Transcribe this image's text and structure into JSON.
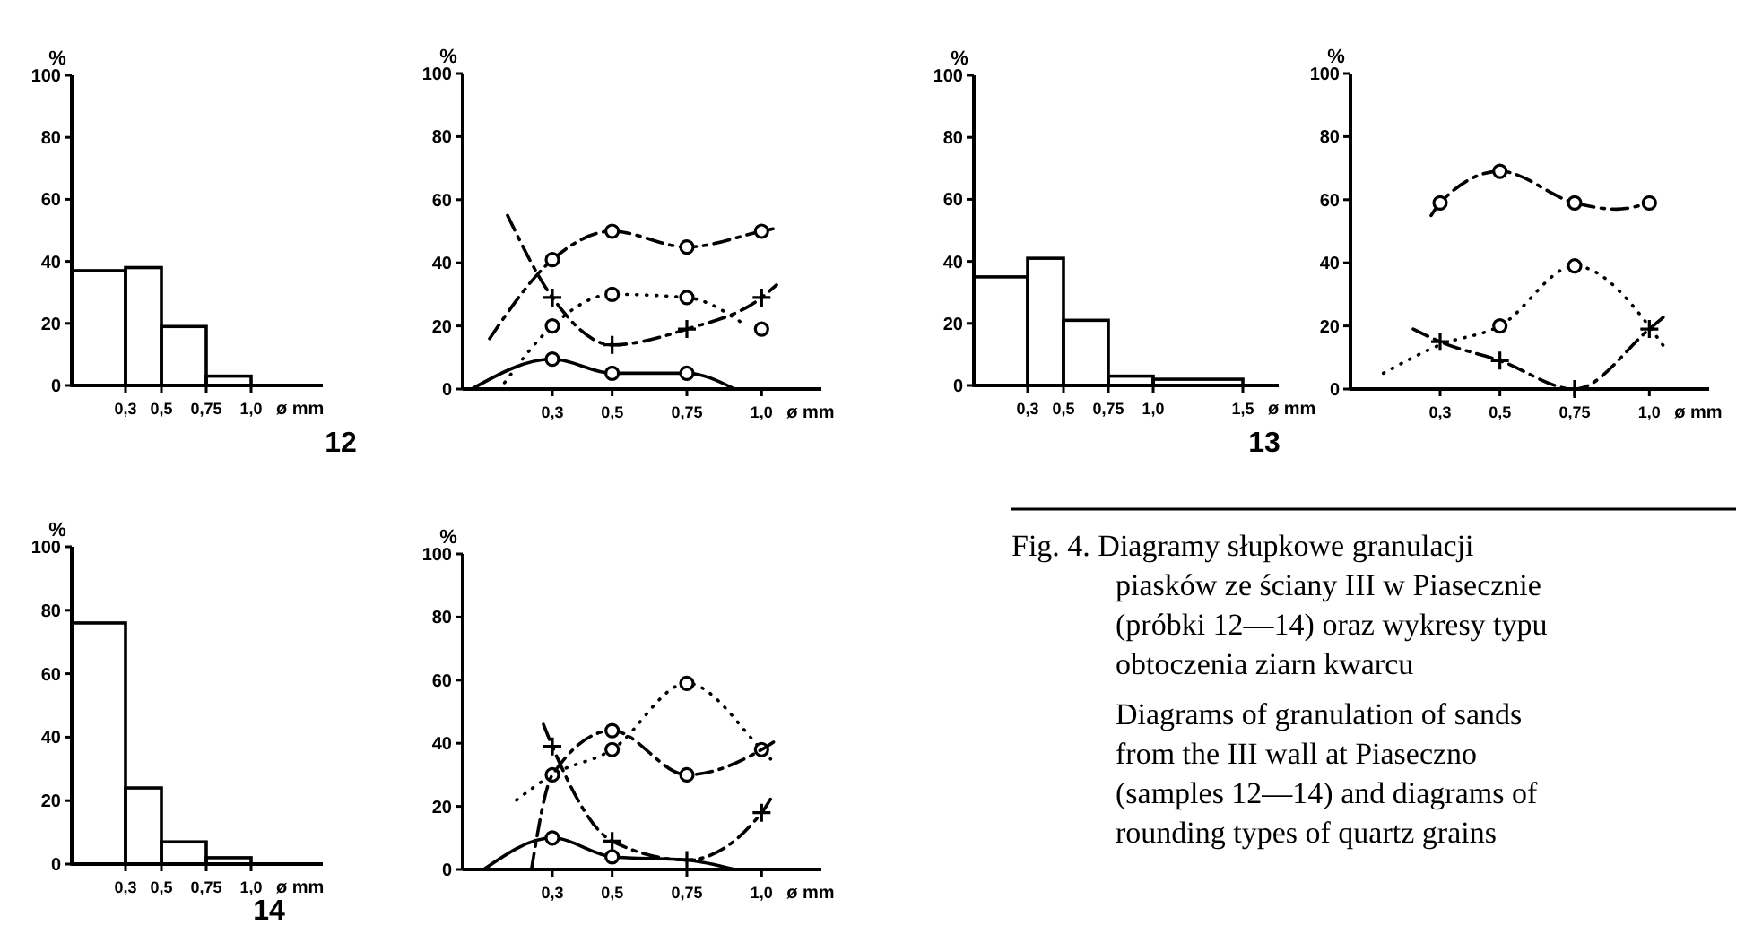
{
  "chart_data": [
    {
      "type": "histogram",
      "ylabel": "%",
      "xlabel": "ø mm",
      "annotations": [
        "12"
      ],
      "bins": [
        0,
        0.3,
        0.5,
        0.75,
        1.0
      ],
      "values": [
        37,
        38,
        19,
        3
      ],
      "color": "#000000",
      "xlim": [
        0,
        1.4
      ],
      "ylim": [
        0,
        100
      ],
      "yticks": [
        0,
        20,
        40,
        60,
        80,
        100
      ],
      "xticks": [
        {
          "value": 0.3,
          "label": "0,3"
        },
        {
          "value": 0.5,
          "label": "0,5"
        },
        {
          "value": 0.75,
          "label": "0,75"
        },
        {
          "value": 1.0,
          "label": "1,0"
        }
      ]
    },
    {
      "type": "line",
      "ylabel": "%",
      "xlabel": "ø mm",
      "xlim": [
        0,
        1.2
      ],
      "ylim": [
        0,
        100
      ],
      "yticks": [
        0,
        20,
        40,
        60,
        80,
        100
      ],
      "xticks": [
        {
          "value": 0.3,
          "label": "0,3"
        },
        {
          "value": 0.5,
          "label": "0,5"
        },
        {
          "value": 0.75,
          "label": "0,75"
        },
        {
          "value": 1.0,
          "label": "1,0"
        }
      ],
      "series": [
        {
          "type": "line",
          "color": "#000000",
          "line_style": "dashed",
          "marker": "none",
          "x": [
            0.09,
            0.3,
            0.5,
            0.75,
            1.0,
            1.05
          ],
          "values": [
            16,
            41,
            50,
            45,
            50,
            51
          ]
        },
        {
          "type": "scatter",
          "color": "#000000",
          "marker": "circle",
          "x": [
            0.3,
            0.5,
            0.75,
            1.0
          ],
          "values": [
            41,
            50,
            45,
            50
          ]
        },
        {
          "type": "line",
          "color": "#000000",
          "line_style": "dotted",
          "marker": "none",
          "x": [
            0.14,
            0.3,
            0.5,
            0.75,
            0.95
          ],
          "values": [
            2,
            20,
            30,
            29,
            20
          ]
        },
        {
          "type": "scatter",
          "color": "#000000",
          "marker": "circle",
          "x": [
            0.3,
            0.5,
            0.75,
            1.0
          ],
          "values": [
            20,
            30,
            29,
            19
          ]
        },
        {
          "type": "line",
          "color": "#000000",
          "line_style": "dashed",
          "marker": "none",
          "x": [
            0.15,
            0.3,
            0.5,
            0.75,
            1.0,
            1.05
          ],
          "values": [
            55,
            29,
            14,
            19,
            29,
            33
          ]
        },
        {
          "type": "scatter",
          "color": "#000000",
          "marker": "cross",
          "x": [
            0.3,
            0.5,
            0.75,
            1.0
          ],
          "values": [
            29,
            14,
            19,
            29
          ]
        },
        {
          "type": "line",
          "color": "#000000",
          "line_style": "solid",
          "marker": "none",
          "x": [
            0.03,
            0.3,
            0.5,
            0.75,
            0.91
          ],
          "values": [
            0,
            9.5,
            5,
            5,
            0
          ]
        },
        {
          "type": "scatter",
          "color": "#000000",
          "marker": "circle",
          "x": [
            0.3,
            0.5,
            0.75
          ],
          "values": [
            9.5,
            5,
            5
          ]
        }
      ]
    },
    {
      "type": "histogram",
      "ylabel": "%",
      "xlabel": "ø mm",
      "annotations": [
        "13"
      ],
      "bins": [
        0,
        0.3,
        0.5,
        0.75,
        1.0,
        1.5
      ],
      "values": [
        35,
        41,
        21,
        3,
        2
      ],
      "color": "#000000",
      "xlim": [
        0,
        1.7
      ],
      "ylim": [
        0,
        100
      ],
      "yticks": [
        0,
        20,
        40,
        60,
        80,
        100
      ],
      "xticks": [
        {
          "value": 0.3,
          "label": "0,3"
        },
        {
          "value": 0.5,
          "label": "0,5"
        },
        {
          "value": 0.75,
          "label": "0,75"
        },
        {
          "value": 1.0,
          "label": "1,0"
        },
        {
          "value": 1.5,
          "label": "1,5"
        }
      ]
    },
    {
      "type": "line",
      "ylabel": "%",
      "xlabel": "ø mm",
      "xlim": [
        0,
        1.2
      ],
      "ylim": [
        0,
        100
      ],
      "yticks": [
        0,
        20,
        40,
        60,
        80,
        100
      ],
      "xticks": [
        {
          "value": 0.3,
          "label": "0,3"
        },
        {
          "value": 0.5,
          "label": "0,5"
        },
        {
          "value": 0.75,
          "label": "0,75"
        },
        {
          "value": 1.0,
          "label": "1,0"
        }
      ],
      "series": [
        {
          "type": "line",
          "color": "#000000",
          "line_style": "dashed",
          "marker": "none",
          "x": [
            0.27,
            0.3,
            0.5,
            0.75,
            0.89,
            1.0
          ],
          "values": [
            55,
            59,
            69,
            59,
            57,
            59
          ]
        },
        {
          "type": "scatter",
          "color": "#000000",
          "marker": "circle",
          "x": [
            0.3,
            0.5,
            0.75,
            1.0
          ],
          "values": [
            59,
            69,
            59,
            59
          ]
        },
        {
          "type": "line",
          "color": "#000000",
          "line_style": "dotted",
          "marker": "none",
          "x": [
            0.11,
            0.3,
            0.5,
            0.75,
            1.06
          ],
          "values": [
            5,
            14,
            20,
            39,
            12
          ]
        },
        {
          "type": "scatter",
          "color": "#000000",
          "marker": "circle",
          "x": [
            0.5,
            0.75
          ],
          "values": [
            20,
            39
          ]
        },
        {
          "type": "line",
          "color": "#000000",
          "line_style": "dashed",
          "marker": "none",
          "x": [
            0.21,
            0.3,
            0.5,
            0.75,
            1.0,
            1.05
          ],
          "values": [
            19,
            15,
            9,
            0,
            19,
            23
          ]
        },
        {
          "type": "scatter",
          "color": "#000000",
          "marker": "cross",
          "x": [
            0.3,
            0.5,
            0.75,
            1.0
          ],
          "values": [
            15,
            9,
            0,
            19
          ]
        }
      ]
    },
    {
      "type": "histogram",
      "ylabel": "%",
      "xlabel": "ø mm",
      "annotations": [
        "14"
      ],
      "bins": [
        0,
        0.3,
        0.5,
        0.75,
        1.0
      ],
      "values": [
        76,
        24,
        7,
        2
      ],
      "color": "#000000",
      "xlim": [
        0,
        1.4
      ],
      "ylim": [
        0,
        100
      ],
      "yticks": [
        0,
        20,
        40,
        60,
        80,
        100
      ],
      "xticks": [
        {
          "value": 0.3,
          "label": "0,3"
        },
        {
          "value": 0.5,
          "label": "0,5"
        },
        {
          "value": 0.75,
          "label": "0,75"
        },
        {
          "value": 1.0,
          "label": "1,0"
        }
      ]
    },
    {
      "type": "line",
      "ylabel": "%",
      "xlabel": "ø mm",
      "xlim": [
        0,
        1.2
      ],
      "ylim": [
        0,
        100
      ],
      "yticks": [
        0,
        20,
        40,
        60,
        80,
        100
      ],
      "xticks": [
        {
          "value": 0.3,
          "label": "0,3"
        },
        {
          "value": 0.5,
          "label": "0,5"
        },
        {
          "value": 0.75,
          "label": "0,75"
        },
        {
          "value": 1.0,
          "label": "1,0"
        }
      ],
      "series": [
        {
          "type": "line",
          "color": "#000000",
          "line_style": "dotted",
          "marker": "none",
          "x": [
            0.18,
            0.3,
            0.5,
            0.75,
            1.0,
            1.03
          ],
          "values": [
            22,
            30,
            38,
            59,
            38,
            35
          ]
        },
        {
          "type": "scatter",
          "color": "#000000",
          "marker": "circle",
          "x": [
            0.3,
            0.5,
            0.75,
            1.0
          ],
          "values": [
            30,
            38,
            59,
            38
          ]
        },
        {
          "type": "line",
          "color": "#000000",
          "line_style": "dashed",
          "marker": "none",
          "x": [
            0.23,
            0.3,
            0.5,
            0.75,
            1.0,
            1.05
          ],
          "values": [
            0,
            30,
            44,
            30,
            38,
            41
          ]
        },
        {
          "type": "scatter",
          "color": "#000000",
          "marker": "circle",
          "x": [
            0.5,
            0.75
          ],
          "values": [
            44,
            30
          ]
        },
        {
          "type": "line",
          "color": "#000000",
          "line_style": "dashed",
          "marker": "none",
          "x": [
            0.27,
            0.3,
            0.5,
            0.75,
            1.0,
            1.04
          ],
          "values": [
            46,
            39,
            9,
            3,
            18,
            24
          ]
        },
        {
          "type": "scatter",
          "color": "#000000",
          "marker": "cross",
          "x": [
            0.3,
            0.5,
            0.75,
            1.0
          ],
          "values": [
            39,
            9,
            3,
            18
          ]
        },
        {
          "type": "line",
          "color": "#000000",
          "line_style": "solid",
          "marker": "none",
          "x": [
            0.07,
            0.3,
            0.5,
            0.75,
            0.91
          ],
          "values": [
            0,
            10,
            4,
            3,
            0
          ]
        },
        {
          "type": "scatter",
          "color": "#000000",
          "marker": "circle",
          "x": [
            0.3,
            0.5
          ],
          "values": [
            10,
            4
          ]
        }
      ]
    },
    {
      "type": "other",
      "annotations": [
        "Fig. 4. Diagramy słupkowe granulacji piasków ze ściany III w Piasecznie (próbki 12—14) oraz wykresy typu obtoczenia ziarn kwarcu",
        "Diagrams of granulation of sands from the III wall at Piaseczno (samples 12—14) and diagrams of rounding types of quartz grains"
      ]
    }
  ]
}
